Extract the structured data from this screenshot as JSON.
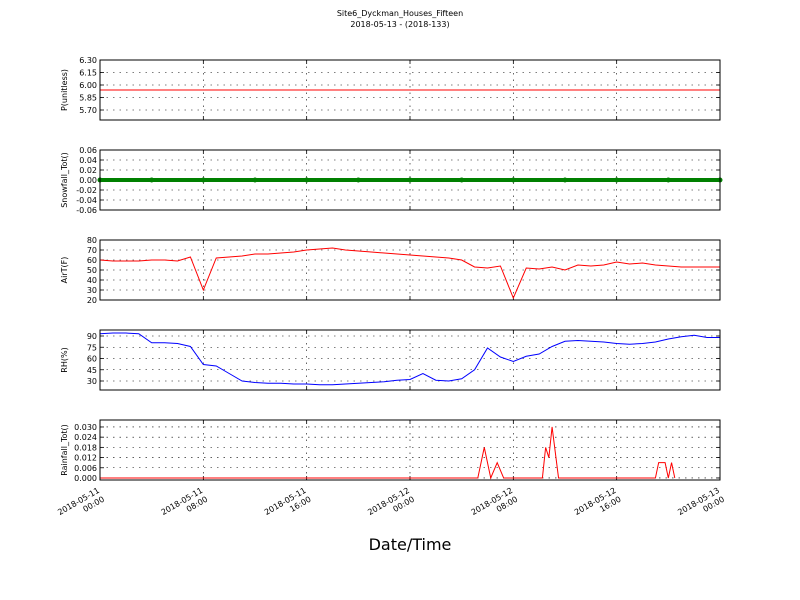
{
  "title": "Site6_Dyckman_Houses_Fifteen",
  "subtitle": "2018-05-13 - (2018-133)",
  "xlabel": "Date/Time",
  "chart_data": [
    {
      "type": "line",
      "ylabel": "P(unitless)",
      "color": "#ff0000",
      "grid": true,
      "xlim": [
        "2018-05-11 00:00",
        "2018-05-13 00:00"
      ],
      "xticks": [
        "2018-05-11 00:00",
        "2018-05-11 08:00",
        "2018-05-11 16:00",
        "2018-05-12 00:00",
        "2018-05-12 08:00",
        "2018-05-12 16:00",
        "2018-05-13 00:00"
      ],
      "ylim": [
        5.58,
        6.3
      ],
      "yticks": [
        {
          "value": 5.7,
          "label": "5.70"
        },
        {
          "value": 5.85,
          "label": "5.85"
        },
        {
          "value": 6.0,
          "label": "6.00"
        },
        {
          "value": 6.15,
          "label": "6.15"
        },
        {
          "value": 6.3,
          "label": "6.30"
        }
      ],
      "x": [
        "2018-05-11 00:00",
        "2018-05-11 04:00",
        "2018-05-11 08:00",
        "2018-05-11 12:00",
        "2018-05-11 16:00",
        "2018-05-11 20:00",
        "2018-05-12 00:00",
        "2018-05-12 04:00",
        "2018-05-12 08:00",
        "2018-05-12 12:00",
        "2018-05-12 16:00",
        "2018-05-12 20:00",
        "2018-05-13 00:00"
      ],
      "values": [
        5.94,
        5.94,
        5.94,
        5.94,
        5.94,
        5.94,
        5.94,
        5.94,
        5.94,
        5.94,
        5.94,
        5.94,
        5.94
      ]
    },
    {
      "type": "line",
      "ylabel": "Snowfall_Tot()",
      "color": "#008000",
      "markers": true,
      "grid": true,
      "xlim": [
        "2018-05-11 00:00",
        "2018-05-13 00:00"
      ],
      "xticks": [
        "2018-05-11 00:00",
        "2018-05-11 08:00",
        "2018-05-11 16:00",
        "2018-05-12 00:00",
        "2018-05-12 08:00",
        "2018-05-12 16:00",
        "2018-05-13 00:00"
      ],
      "ylim": [
        -0.06,
        0.06
      ],
      "yticks": [
        -0.06,
        -0.04,
        -0.02,
        {
          "value": 0,
          "label": "0.00"
        },
        0.02,
        0.04,
        0.06
      ],
      "x": [
        "2018-05-11 00:00",
        "2018-05-11 04:00",
        "2018-05-11 08:00",
        "2018-05-11 12:00",
        "2018-05-11 16:00",
        "2018-05-11 20:00",
        "2018-05-12 00:00",
        "2018-05-12 04:00",
        "2018-05-12 08:00",
        "2018-05-12 12:00",
        "2018-05-12 16:00",
        "2018-05-12 20:00",
        "2018-05-13 00:00"
      ],
      "values": [
        0,
        0,
        0,
        0,
        0,
        0,
        0,
        0,
        0,
        0,
        0,
        0,
        0
      ]
    },
    {
      "type": "line",
      "ylabel": "AirT(F)",
      "color": "#ff0000",
      "grid": true,
      "xlim": [
        "2018-05-11 00:00",
        "2018-05-13 00:00"
      ],
      "xticks": [
        "2018-05-11 00:00",
        "2018-05-11 08:00",
        "2018-05-11 16:00",
        "2018-05-12 00:00",
        "2018-05-12 08:00",
        "2018-05-12 16:00",
        "2018-05-13 00:00"
      ],
      "ylim": [
        20,
        80
      ],
      "yticks": [
        20,
        30,
        40,
        50,
        60,
        70,
        80
      ],
      "x": [
        "2018-05-11 00:00",
        "2018-05-11 01:00",
        "2018-05-11 02:00",
        "2018-05-11 03:00",
        "2018-05-11 04:00",
        "2018-05-11 05:00",
        "2018-05-11 06:00",
        "2018-05-11 07:00",
        "2018-05-11 08:00",
        "2018-05-11 09:00",
        "2018-05-11 10:00",
        "2018-05-11 11:00",
        "2018-05-11 12:00",
        "2018-05-11 13:00",
        "2018-05-11 14:00",
        "2018-05-11 15:00",
        "2018-05-11 16:00",
        "2018-05-11 17:00",
        "2018-05-11 18:00",
        "2018-05-11 19:00",
        "2018-05-11 20:00",
        "2018-05-11 21:00",
        "2018-05-11 22:00",
        "2018-05-11 23:00",
        "2018-05-12 00:00",
        "2018-05-12 01:00",
        "2018-05-12 02:00",
        "2018-05-12 03:00",
        "2018-05-12 04:00",
        "2018-05-12 05:00",
        "2018-05-12 06:00",
        "2018-05-12 07:00",
        "2018-05-12 08:00",
        "2018-05-12 09:00",
        "2018-05-12 10:00",
        "2018-05-12 11:00",
        "2018-05-12 12:00",
        "2018-05-12 13:00",
        "2018-05-12 14:00",
        "2018-05-12 15:00",
        "2018-05-12 16:00",
        "2018-05-12 17:00",
        "2018-05-12 18:00",
        "2018-05-12 19:00",
        "2018-05-12 20:00",
        "2018-05-12 21:00",
        "2018-05-12 22:00",
        "2018-05-12 23:00",
        "2018-05-13 00:00"
      ],
      "values": [
        60,
        59,
        59,
        59,
        60,
        60,
        59,
        63,
        30,
        62,
        63,
        64,
        66,
        66,
        67,
        68,
        70,
        71,
        72,
        70,
        69,
        68,
        67,
        66,
        65,
        64,
        63,
        62,
        60,
        53,
        52,
        54,
        22,
        52,
        51,
        53,
        50,
        55,
        54,
        55,
        58,
        56,
        57,
        55,
        54,
        53,
        53,
        53,
        53
      ]
    },
    {
      "type": "line",
      "ylabel": "RH(%)",
      "color": "#0000ff",
      "grid": true,
      "xlim": [
        "2018-05-11 00:00",
        "2018-05-13 00:00"
      ],
      "xticks": [
        "2018-05-11 00:00",
        "2018-05-11 08:00",
        "2018-05-11 16:00",
        "2018-05-12 00:00",
        "2018-05-12 08:00",
        "2018-05-12 16:00",
        "2018-05-13 00:00"
      ],
      "ylim": [
        18,
        98
      ],
      "yticks": [
        30,
        45,
        60,
        75,
        90
      ],
      "x": [
        "2018-05-11 00:00",
        "2018-05-11 01:00",
        "2018-05-11 02:00",
        "2018-05-11 03:00",
        "2018-05-11 04:00",
        "2018-05-11 05:00",
        "2018-05-11 06:00",
        "2018-05-11 07:00",
        "2018-05-11 08:00",
        "2018-05-11 09:00",
        "2018-05-11 10:00",
        "2018-05-11 11:00",
        "2018-05-11 12:00",
        "2018-05-11 13:00",
        "2018-05-11 14:00",
        "2018-05-11 15:00",
        "2018-05-11 16:00",
        "2018-05-11 17:00",
        "2018-05-11 18:00",
        "2018-05-11 19:00",
        "2018-05-11 20:00",
        "2018-05-11 21:00",
        "2018-05-11 22:00",
        "2018-05-11 23:00",
        "2018-05-12 00:00",
        "2018-05-12 01:00",
        "2018-05-12 02:00",
        "2018-05-12 03:00",
        "2018-05-12 04:00",
        "2018-05-12 05:00",
        "2018-05-12 06:00",
        "2018-05-12 07:00",
        "2018-05-12 08:00",
        "2018-05-12 09:00",
        "2018-05-12 10:00",
        "2018-05-12 11:00",
        "2018-05-12 12:00",
        "2018-05-12 13:00",
        "2018-05-12 14:00",
        "2018-05-12 15:00",
        "2018-05-12 16:00",
        "2018-05-12 17:00",
        "2018-05-12 18:00",
        "2018-05-12 19:00",
        "2018-05-12 20:00",
        "2018-05-12 21:00",
        "2018-05-12 22:00",
        "2018-05-12 23:00",
        "2018-05-13 00:00"
      ],
      "values": [
        93,
        94,
        94,
        93,
        81,
        81,
        80,
        76,
        52,
        50,
        40,
        30,
        28,
        27,
        27,
        26,
        26,
        25,
        25,
        26,
        27,
        28,
        29,
        31,
        32,
        40,
        31,
        30,
        33,
        45,
        74,
        62,
        56,
        63,
        66,
        76,
        83,
        84,
        83,
        82,
        80,
        79,
        80,
        82,
        86,
        89,
        91,
        88,
        88
      ]
    },
    {
      "type": "line",
      "ylabel": "Rainfall_Tot()",
      "color": "#ff0000",
      "grid": true,
      "show_xtick_labels": true,
      "xlim": [
        "2018-05-11 00:00",
        "2018-05-13 00:00"
      ],
      "xticks": [
        "2018-05-11 00:00",
        "2018-05-11 08:00",
        "2018-05-11 16:00",
        "2018-05-12 00:00",
        "2018-05-12 08:00",
        "2018-05-12 16:00",
        "2018-05-13 00:00"
      ],
      "ylim": [
        -0.0012,
        0.0341
      ],
      "yticks": [
        {
          "value": 0,
          "label": "0.000"
        },
        0.006,
        0.012,
        0.018,
        0.024,
        {
          "value": 0.03,
          "label": "0.030"
        }
      ],
      "x": [
        "2018-05-11 00:00",
        "2018-05-12 05:15",
        "2018-05-12 05:45",
        "2018-05-12 06:15",
        "2018-05-12 06:45",
        "2018-05-12 07:15",
        "2018-05-12 10:15",
        "2018-05-12 10:30",
        "2018-05-12 10:45",
        "2018-05-12 11:00",
        "2018-05-12 11:30",
        "2018-05-12 19:00",
        "2018-05-12 19:15",
        "2018-05-12 19:45",
        "2018-05-12 20:00",
        "2018-05-12 20:15",
        "2018-05-12 20:30"
      ],
      "values": [
        0,
        0,
        0.018,
        0,
        0.009,
        0,
        0,
        0.018,
        0.012,
        0.03,
        0,
        0,
        0.009,
        0.009,
        0,
        0.009,
        0
      ]
    }
  ]
}
